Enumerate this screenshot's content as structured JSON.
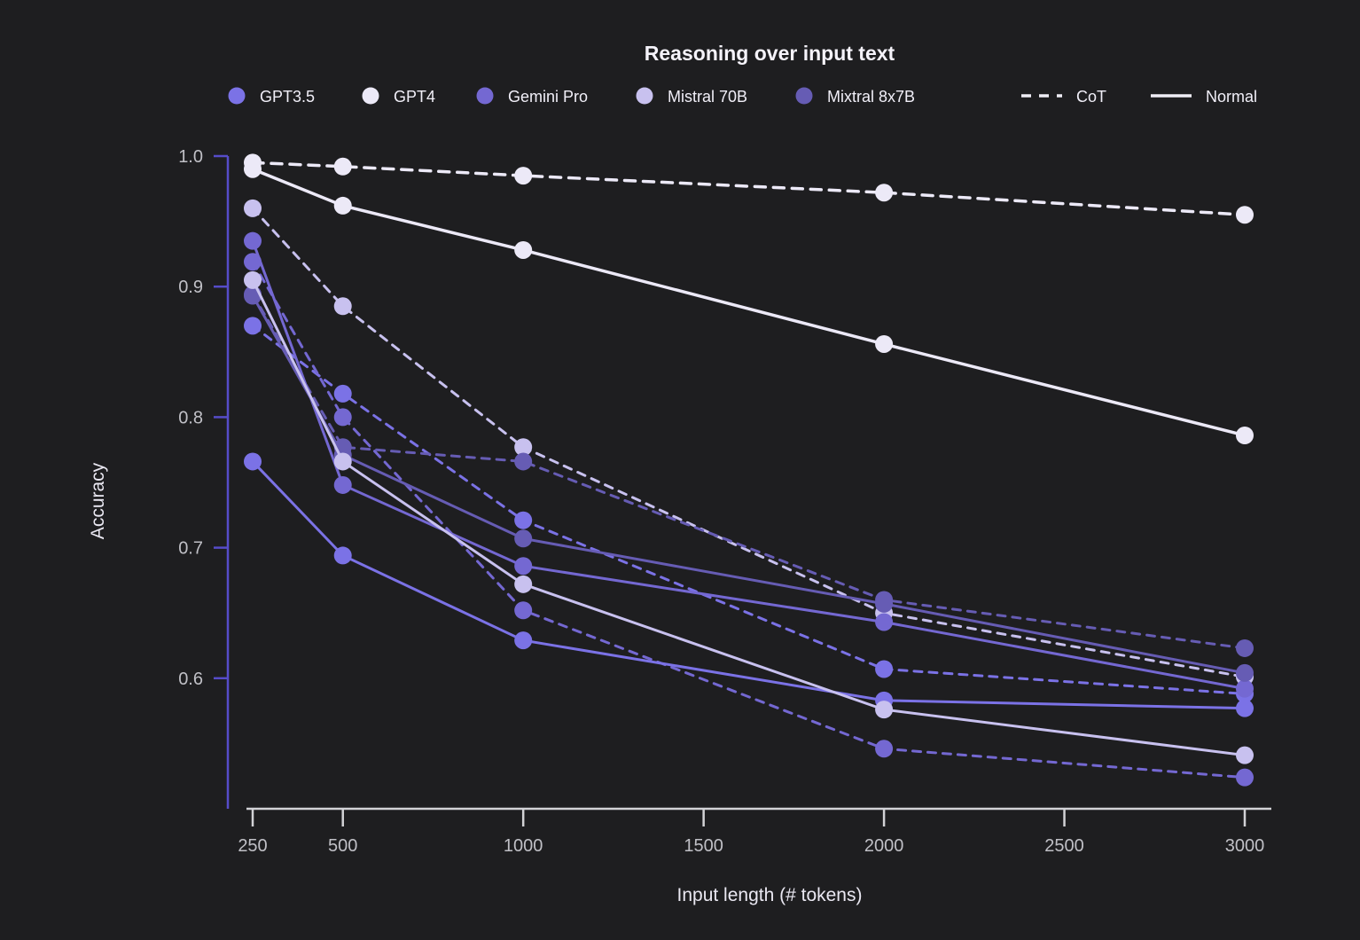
{
  "title": "Reasoning over input text",
  "axes": {
    "y_label": "Accuracy",
    "x_label": "Input length (# tokens)",
    "y_ticks": [
      "1.0",
      "0.9",
      "0.8",
      "0.7",
      "0.6"
    ],
    "y_tick_values": [
      1.0,
      0.9,
      0.8,
      0.7,
      0.6
    ],
    "x_ticks": [
      "250",
      "500",
      "1000",
      "1500",
      "2000",
      "2500",
      "3000"
    ],
    "x_tick_values": [
      250,
      500,
      1000,
      1500,
      2000,
      2500,
      3000
    ]
  },
  "legend": {
    "models": [
      {
        "key": "gpt35",
        "label": "GPT3.5",
        "color": "#7b72e6"
      },
      {
        "key": "gpt4",
        "label": "GPT4",
        "color": "#ece9f7"
      },
      {
        "key": "gemini-pro",
        "label": "Gemini Pro",
        "color": "#7468d2"
      },
      {
        "key": "mistral-70b",
        "label": "Mistral 70B",
        "color": "#c8c1ef"
      },
      {
        "key": "mixtral-8x7b",
        "label": "Mixtral 8x7B",
        "color": "#665cb4"
      }
    ],
    "styles": [
      {
        "key": "cot",
        "label": "CoT",
        "line": "dashed"
      },
      {
        "key": "normal",
        "label": "Normal",
        "line": "solid"
      }
    ]
  },
  "colors": {
    "background": "#1e1e20",
    "y_axis": "#564cc9",
    "x_axis": "#d2d2d6",
    "tick_text": "#c0c0c6",
    "title_text": "#f5f3fa",
    "axis_label_text": "#eae8f2",
    "legend_text": "#f1eff8",
    "legend_sample": "#efedf6"
  },
  "chart_data": {
    "type": "line",
    "title": "Reasoning over input text",
    "xlabel": "Input length (# tokens)",
    "ylabel": "Accuracy",
    "x": [
      250,
      500,
      1000,
      2000,
      3000
    ],
    "xlim": [
      230,
      3075
    ],
    "ylim": [
      0.5,
      1.0
    ],
    "grid": false,
    "legend_position": "top",
    "series": [
      {
        "name": "GPT3.5 CoT",
        "model": "gpt35",
        "style": "dashed",
        "color": "#7b72e6",
        "values": [
          0.87,
          0.818,
          0.721,
          0.607,
          0.588
        ]
      },
      {
        "name": "GPT4 CoT",
        "model": "gpt4",
        "style": "dashed",
        "color": "#ece9f7",
        "values": [
          0.995,
          0.992,
          0.985,
          0.972,
          0.955
        ]
      },
      {
        "name": "Gemini Pro CoT",
        "model": "gemini-pro",
        "style": "dashed",
        "color": "#7468d2",
        "values": [
          0.919,
          0.8,
          0.652,
          0.546,
          0.524
        ]
      },
      {
        "name": "Mistral 70B CoT",
        "model": "mistral-70b",
        "style": "dashed",
        "color": "#c8c1ef",
        "values": [
          0.96,
          0.885,
          0.777,
          0.65,
          0.601
        ]
      },
      {
        "name": "Mixtral 8x7B CoT",
        "model": "mixtral-8x7b",
        "style": "dashed",
        "color": "#665cb4",
        "values": [
          0.894,
          0.777,
          0.766,
          0.66,
          0.623
        ]
      },
      {
        "name": "GPT3.5 Normal",
        "model": "gpt35",
        "style": "solid",
        "color": "#7b72e6",
        "values": [
          0.766,
          0.694,
          0.629,
          0.583,
          0.577
        ]
      },
      {
        "name": "GPT4 Normal",
        "model": "gpt4",
        "style": "solid",
        "color": "#ece9f7",
        "values": [
          0.99,
          0.962,
          0.928,
          0.856,
          0.786
        ]
      },
      {
        "name": "Gemini Pro Normal",
        "model": "gemini-pro",
        "style": "solid",
        "color": "#7468d2",
        "values": [
          0.935,
          0.748,
          0.686,
          0.643,
          0.592
        ]
      },
      {
        "name": "Mixtral 8x7B Normal",
        "model": "mixtral-8x7b",
        "style": "solid",
        "color": "#665cb4",
        "values": [
          0.893,
          0.771,
          0.707,
          0.657,
          0.604
        ]
      },
      {
        "name": "Mistral 70B Normal",
        "model": "mistral-70b",
        "style": "solid",
        "color": "#c8c1ef",
        "values": [
          0.905,
          0.766,
          0.672,
          0.576,
          0.541
        ]
      }
    ]
  }
}
